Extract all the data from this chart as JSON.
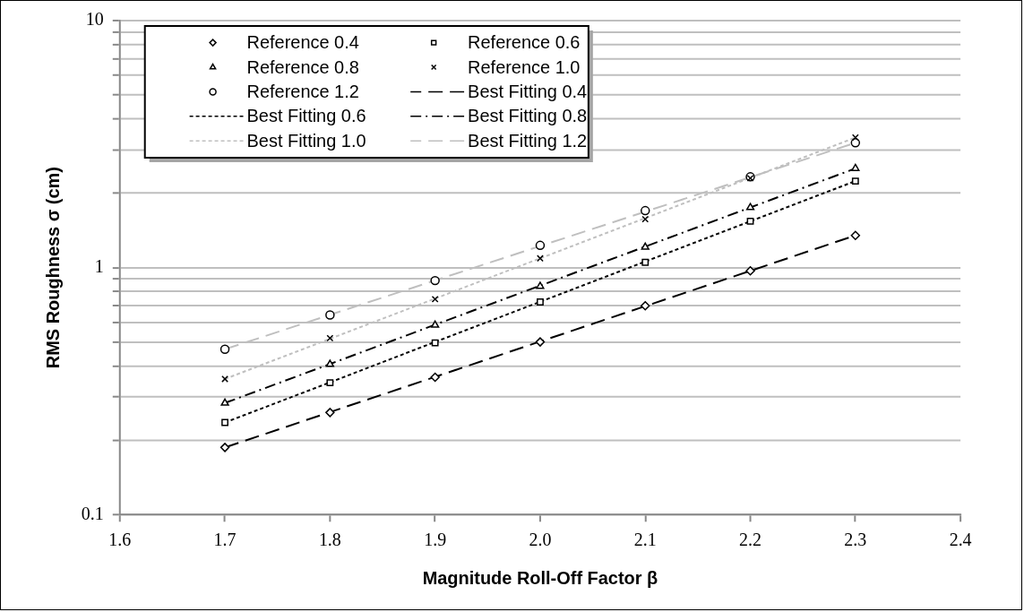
{
  "chart_data": {
    "type": "scatter",
    "xlabel": "Magnitude Roll-Off Factor β",
    "ylabel": "RMS Roughness σ (cm)",
    "x": [
      1.7,
      1.8,
      1.9,
      2.0,
      2.1,
      2.2,
      2.3
    ],
    "xlim": [
      1.6,
      2.4
    ],
    "xticks": [
      {
        "value": 1.6,
        "label": "1.6"
      },
      {
        "value": 1.7,
        "label": "1.7"
      },
      {
        "value": 1.8,
        "label": "1.8"
      },
      {
        "value": 1.9,
        "label": "1.9"
      },
      {
        "value": 2.0,
        "label": "2.0"
      },
      {
        "value": 2.1,
        "label": "2.1"
      },
      {
        "value": 2.2,
        "label": "2.2"
      },
      {
        "value": 2.3,
        "label": "2.3"
      },
      {
        "value": 2.4,
        "label": "2.4"
      }
    ],
    "ylim": [
      0.1,
      10
    ],
    "yticks": [
      0.1,
      {
        "value": 0.2,
        "label": null
      },
      {
        "value": 0.3,
        "label": null
      },
      {
        "value": 0.4,
        "label": null
      },
      {
        "value": 0.5,
        "label": null
      },
      {
        "value": 0.6,
        "label": null
      },
      {
        "value": 0.7,
        "label": null
      },
      {
        "value": 0.8,
        "label": null
      },
      {
        "value": 0.9,
        "label": null
      },
      1,
      {
        "value": 2,
        "label": null
      },
      {
        "value": 3,
        "label": null
      },
      {
        "value": 4,
        "label": null
      },
      {
        "value": 5,
        "label": null
      },
      {
        "value": 6,
        "label": null
      },
      {
        "value": 7,
        "label": null
      },
      {
        "value": 8,
        "label": null
      },
      {
        "value": 9,
        "label": null
      },
      10
    ],
    "log": "y",
    "grid": "y",
    "legend": "top left",
    "series": [
      {
        "name": "Reference 0.4",
        "type": "scatter",
        "marker": "diamond",
        "color": "#000000",
        "values": [
          0.187,
          0.259,
          0.36,
          0.5,
          0.7,
          0.97,
          1.35
        ]
      },
      {
        "name": "Reference 0.6",
        "type": "scatter",
        "marker": "square",
        "color": "#000000",
        "values": [
          0.236,
          0.342,
          0.496,
          0.726,
          1.05,
          1.54,
          2.24
        ]
      },
      {
        "name": "Reference 0.8",
        "type": "scatter",
        "marker": "triangle",
        "color": "#000000",
        "values": [
          0.283,
          0.406,
          0.585,
          0.84,
          1.21,
          1.75,
          2.52
        ]
      },
      {
        "name": "Reference 1.0",
        "type": "scatter",
        "marker": "cross",
        "color": "#000000",
        "values": [
          0.354,
          0.518,
          0.745,
          1.09,
          1.57,
          2.3,
          3.36
        ]
      },
      {
        "name": "Reference 1.2",
        "type": "scatter",
        "marker": "circle",
        "color": "#000000",
        "values": [
          0.467,
          0.643,
          0.886,
          1.23,
          1.7,
          2.33,
          3.2
        ]
      },
      {
        "name": "Best Fitting 0.4",
        "type": "line",
        "marker": "none",
        "line_style": "dashed",
        "color": "#000000",
        "values": [
          0.187,
          0.26,
          0.361,
          0.502,
          0.698,
          0.97,
          1.35
        ]
      },
      {
        "name": "Best Fitting 0.6",
        "type": "line",
        "marker": "none",
        "line_style": "dotted",
        "color": "#000000",
        "values": [
          0.236,
          0.343,
          0.5,
          0.727,
          1.058,
          1.54,
          2.24
        ]
      },
      {
        "name": "Best Fitting 0.8",
        "type": "line",
        "marker": "none",
        "line_style": "dashdot",
        "color": "#000000",
        "values": [
          0.283,
          0.407,
          0.587,
          0.845,
          1.216,
          1.751,
          2.52
        ]
      },
      {
        "name": "Best Fitting 1.0",
        "type": "line",
        "marker": "none",
        "line_style": "dotted",
        "color": "#bfbfbf",
        "values": [
          0.354,
          0.515,
          0.749,
          1.09,
          1.586,
          2.308,
          3.36
        ]
      },
      {
        "name": "Best Fitting 1.2",
        "type": "line",
        "marker": "none",
        "line_style": "dashed",
        "color": "#bfbfbf",
        "values": [
          0.467,
          0.644,
          0.887,
          1.222,
          1.684,
          2.321,
          3.2
        ]
      }
    ]
  }
}
